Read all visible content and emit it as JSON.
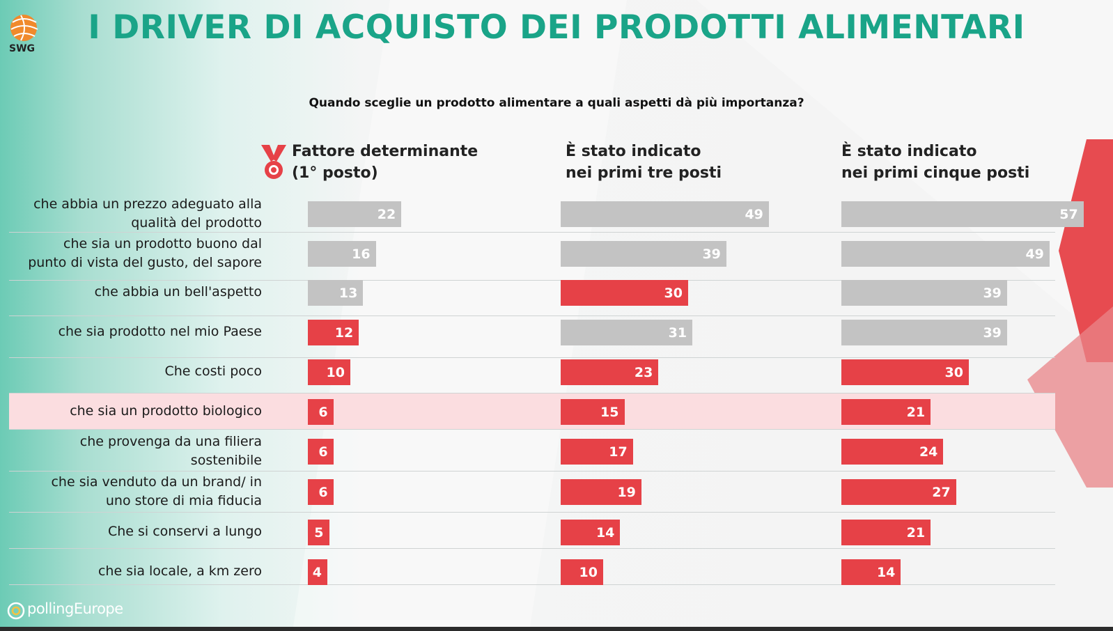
{
  "header": {
    "title": "I DRIVER DI ACQUISTO DEI PRODOTTI ALIMENTARI",
    "logo_text": "SWG",
    "question": "Quando sceglie un prodotto alimentare a quali aspetti dà più importanza?"
  },
  "footer": {
    "brand": "pollingEurope"
  },
  "colors": {
    "accent": "#1aa488",
    "red_bar": "#e64147",
    "grey_bar": "#c3c3c3",
    "highlight_row": "#fbdde0"
  },
  "chart_data": {
    "type": "bar",
    "orientation": "horizontal",
    "columns": [
      {
        "header_line1": "Fattore determinante",
        "header_line2": "(1° posto)",
        "values": [
          22,
          16,
          13,
          12,
          10,
          6,
          6,
          6,
          5,
          4
        ],
        "colors": [
          "grey",
          "grey",
          "grey",
          "red",
          "red",
          "red",
          "red",
          "red",
          "red",
          "red"
        ]
      },
      {
        "header_line1": "È stato indicato",
        "header_line2": "nei primi tre posti",
        "values": [
          49,
          39,
          30,
          31,
          23,
          15,
          17,
          19,
          14,
          10
        ],
        "colors": [
          "grey",
          "grey",
          "red",
          "grey",
          "red",
          "red",
          "red",
          "red",
          "red",
          "red"
        ]
      },
      {
        "header_line1": "È stato indicato",
        "header_line2": "nei primi cinque posti",
        "values": [
          57,
          49,
          39,
          39,
          30,
          21,
          24,
          27,
          21,
          14
        ],
        "colors": [
          "grey",
          "grey",
          "grey",
          "grey",
          "red",
          "red",
          "red",
          "red",
          "red",
          "red"
        ]
      }
    ],
    "categories": [
      {
        "line1": "che abbia un prezzo adeguato alla",
        "line2": "qualità del prodotto"
      },
      {
        "line1": "che sia un prodotto buono dal",
        "line2": "punto di vista del gusto, del sapore"
      },
      {
        "line1": "che abbia un bell'aspetto",
        "line2": ""
      },
      {
        "line1": "che sia prodotto nel mio Paese",
        "line2": ""
      },
      {
        "line1": "Che costi poco",
        "line2": ""
      },
      {
        "line1": "che sia un prodotto biologico",
        "line2": ""
      },
      {
        "line1": "che provenga da una filiera",
        "line2": "sostenibile"
      },
      {
        "line1": "che sia venduto da un brand/ in",
        "line2": "uno store di mia fiducia"
      },
      {
        "line1": "Che si conservi a lungo",
        "line2": ""
      },
      {
        "line1": "che sia locale, a km zero",
        "line2": ""
      }
    ],
    "highlighted_category_index": 5
  }
}
